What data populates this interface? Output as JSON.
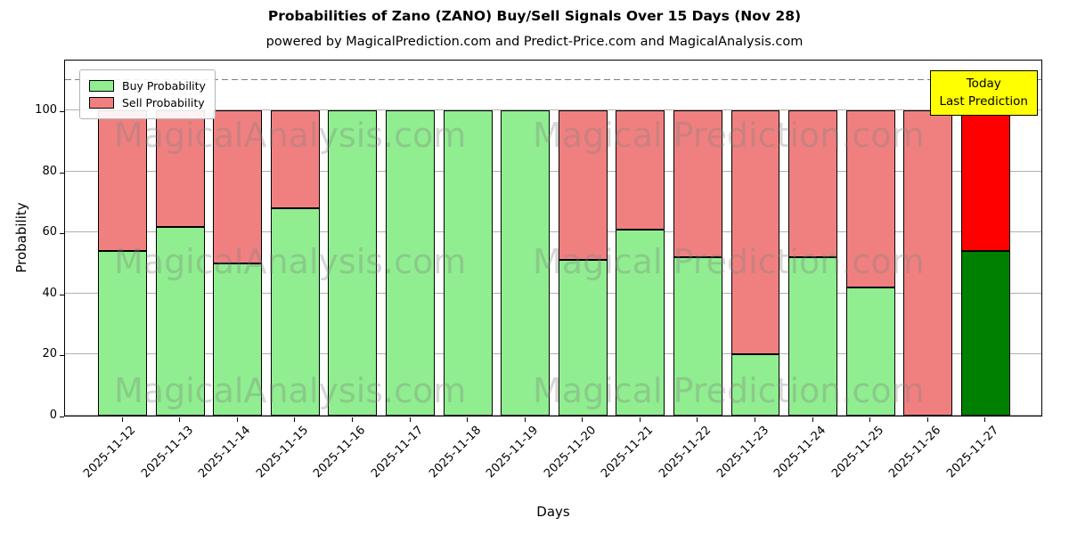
{
  "title": "Probabilities of Zano (ZANO) Buy/Sell Signals Over 15 Days (Nov 28)",
  "subtitle": "powered by MagicalPrediction.com and Predict-Price.com and MagicalAnalysis.com",
  "annotation_box": {
    "lines": [
      "Today",
      "Last Prediction"
    ],
    "bg": "#ffff00"
  },
  "watermarks": {
    "left_text": "MagicalAnalysis.com",
    "right_text": "Magical Prediction.com"
  },
  "colors": {
    "buy": "#90EE90",
    "sell": "#F08080",
    "today_buy": "#008000",
    "today_sell": "#FF0000",
    "grid": "#b0b0b0",
    "dashed_guide": "#7f7f7f",
    "annotation_bg": "#ffff00"
  },
  "chart_data": {
    "type": "bar",
    "stacked": true,
    "title": "Probabilities of Zano (ZANO) Buy/Sell Signals Over 15 Days (Nov 28)",
    "xlabel": "Days",
    "ylabel": "Probability",
    "ylim": [
      0,
      117
    ],
    "yticks": [
      0,
      20,
      40,
      60,
      80,
      100
    ],
    "dashed_guide_y": 110,
    "grid": true,
    "legend_position": "upper left",
    "categories": [
      "2025-11-12",
      "2025-11-13",
      "2025-11-14",
      "2025-11-15",
      "2025-11-16",
      "2025-11-17",
      "2025-11-18",
      "2025-11-19",
      "2025-11-20",
      "2025-11-21",
      "2025-11-22",
      "2025-11-23",
      "2025-11-24",
      "2025-11-25",
      "2025-11-26",
      "2025-11-27"
    ],
    "series": [
      {
        "name": "Buy Probability",
        "color": "#90EE90",
        "values": [
          54,
          62,
          50,
          68,
          100,
          100,
          100,
          100,
          51,
          61,
          52,
          20,
          52,
          42,
          0,
          54
        ]
      },
      {
        "name": "Sell Probability",
        "color": "#F08080",
        "values": [
          46,
          38,
          50,
          32,
          0,
          0,
          0,
          0,
          49,
          39,
          48,
          80,
          48,
          58,
          100,
          46
        ]
      }
    ],
    "today": {
      "index": 15,
      "buy_color": "#008000",
      "sell_color": "#FF0000"
    }
  }
}
